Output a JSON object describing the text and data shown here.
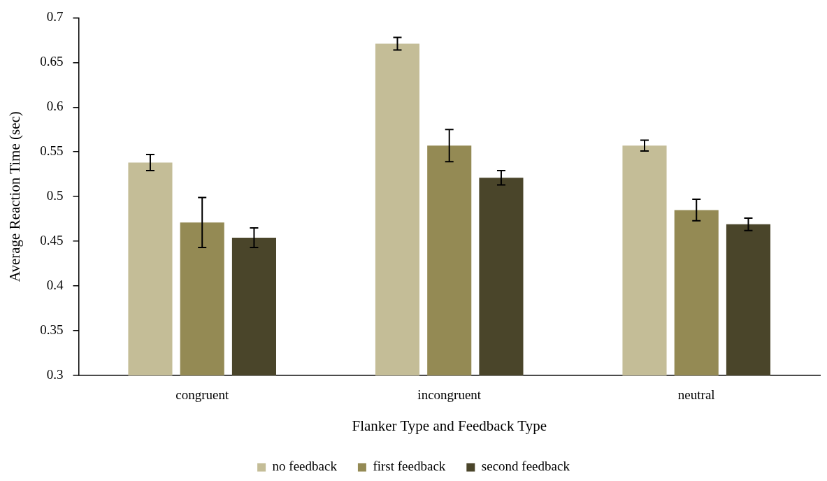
{
  "chart_data": {
    "type": "bar",
    "xlabel": "Flanker Type and Feedback Type",
    "ylabel": "Average Reaction Time (sec)",
    "categories": [
      "congruent",
      "incongruent",
      "neutral"
    ],
    "series": [
      {
        "name": "no feedback",
        "color": "#c4bd97",
        "values": [
          0.538,
          0.671,
          0.557
        ],
        "errors": [
          0.009,
          0.007,
          0.006
        ]
      },
      {
        "name": "first feedback",
        "color": "#948a54",
        "values": [
          0.471,
          0.557,
          0.485
        ],
        "errors": [
          0.028,
          0.018,
          0.012
        ]
      },
      {
        "name": "second feedback",
        "color": "#4a452a",
        "values": [
          0.454,
          0.521,
          0.469
        ],
        "errors": [
          0.011,
          0.008,
          0.007
        ]
      }
    ],
    "ylim": [
      0.3,
      0.7
    ],
    "yticks": [
      0.3,
      0.35,
      0.4,
      0.45,
      0.5,
      0.55,
      0.6,
      0.65,
      0.7
    ],
    "legend": "bottom"
  }
}
